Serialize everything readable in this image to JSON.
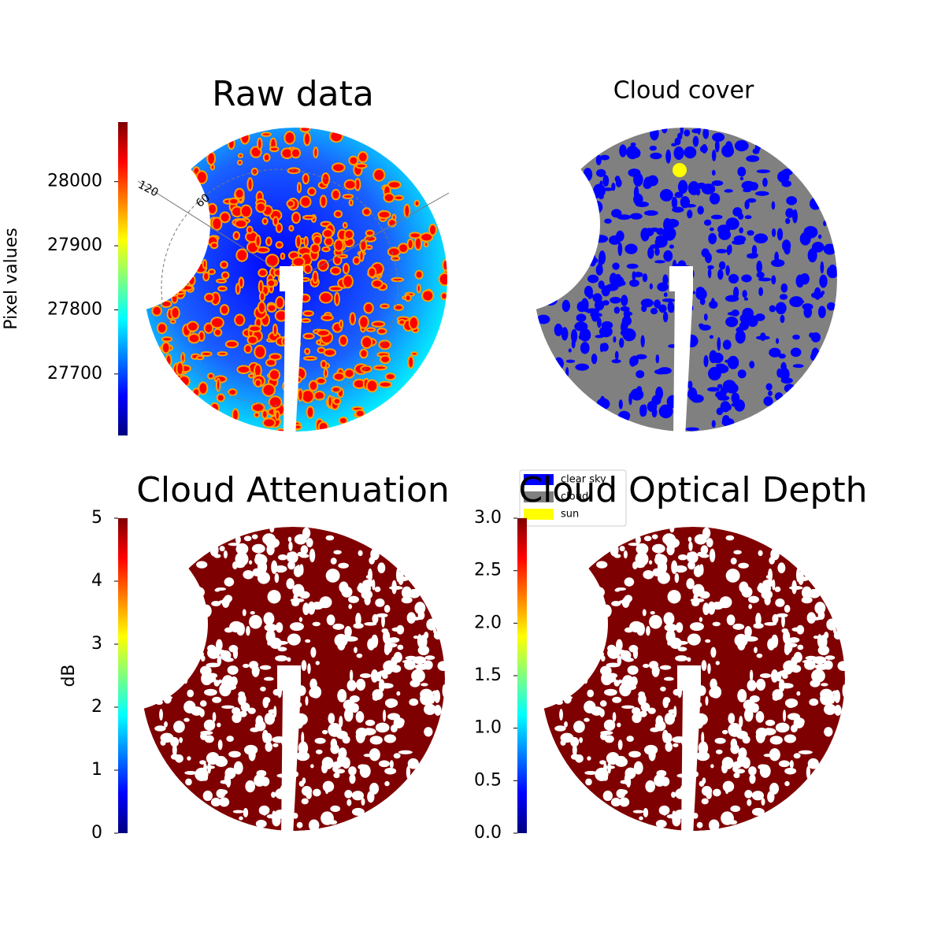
{
  "chart_data": [
    {
      "type": "image",
      "title": "Raw data",
      "colorbar_label": "Pixel values",
      "colormap": "jet",
      "ylim": [
        27604,
        28093
      ],
      "yticks": [
        27700,
        27800,
        27900,
        28000
      ],
      "annotations": [
        "120",
        "60"
      ]
    },
    {
      "type": "categorical-image",
      "title": "Cloud cover",
      "series": [
        {
          "name": "clear sky",
          "color": "#0000ff"
        },
        {
          "name": "cloud",
          "color": "#808080"
        },
        {
          "name": "sun",
          "color": "#ffff00"
        }
      ]
    },
    {
      "type": "image",
      "title": "Cloud Attenuation",
      "colorbar_label": "dB",
      "colormap": "jet",
      "ylim": [
        0,
        5
      ],
      "yticks": [
        0,
        1,
        2,
        3,
        4,
        5
      ]
    },
    {
      "type": "image",
      "title": "Cloud Optical Depth",
      "colormap": "jet",
      "ylim": [
        0,
        3
      ],
      "yticks": [
        {
          "value": 0,
          "label": "0.0"
        },
        0.5,
        {
          "value": 1,
          "label": "1.0"
        },
        1.5,
        {
          "value": 2,
          "label": "2.0"
        },
        2.5,
        {
          "value": 3,
          "label": "3.0"
        }
      ]
    }
  ]
}
